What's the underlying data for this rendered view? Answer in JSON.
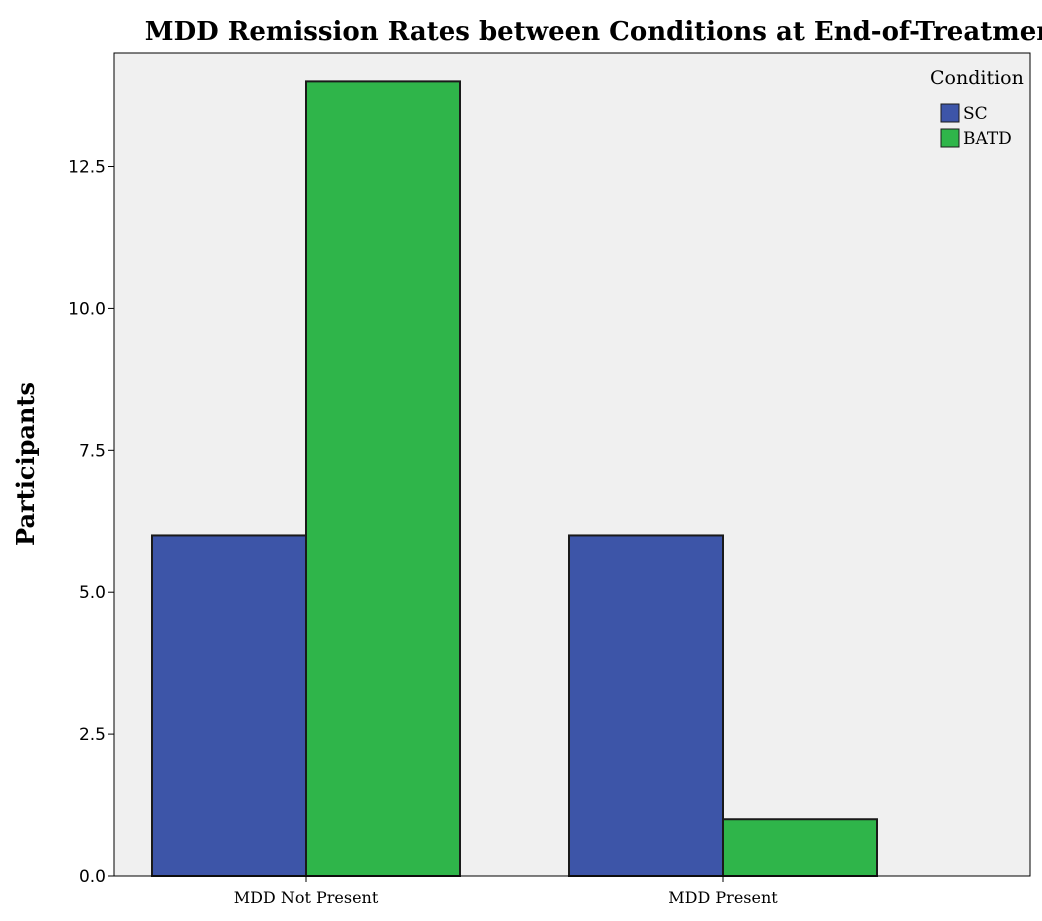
{
  "chart_data": {
    "type": "bar",
    "title": "MDD Remission Rates between Conditions at End-of-Treatment",
    "xlabel": "",
    "ylabel": "Participants",
    "categories": [
      "MDD Not Present",
      "MDD Present"
    ],
    "series": [
      {
        "name": "SC",
        "color": "#3d55a8",
        "values": [
          6,
          6
        ]
      },
      {
        "name": "BATD",
        "color": "#2fb54a",
        "values": [
          14,
          1
        ]
      }
    ],
    "ylim": [
      0,
      14.5
    ],
    "yticks": [
      0,
      2.5,
      5,
      7.5,
      10,
      12.5
    ],
    "ytick_labels": [
      "0.0",
      "2.5",
      "5.0",
      "7.5",
      "10.0",
      "12.5"
    ],
    "grid": false,
    "legend": {
      "title": "Condition",
      "placement": "right"
    },
    "colors": {
      "plot_background": "#f0f0f0",
      "bar_outline": "#1a1a1a"
    }
  }
}
